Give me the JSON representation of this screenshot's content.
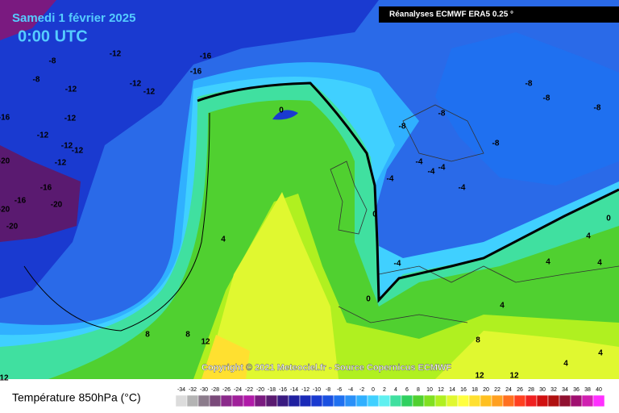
{
  "header": {
    "title": "Samedi 1 février 2025",
    "time": "0:00 UTC",
    "source_box": "Réanalyses ECMWF ERA5 0.25 °"
  },
  "map": {
    "copyright": "Copyright © 2021 Meteociel.fr - Source Copernicus ECMWF",
    "contour_labels": [
      -8,
      -12,
      -16,
      -16,
      -8,
      -12,
      -12,
      -12,
      -16,
      -12,
      -12,
      -12,
      -12,
      -12,
      -20,
      -16,
      -20,
      -16,
      -20,
      -20,
      0,
      -8,
      -8,
      -8,
      -8,
      -8,
      -8,
      -4,
      -4,
      -4,
      -4,
      -4,
      0,
      -4,
      0,
      4,
      4,
      4,
      4,
      0,
      4,
      8,
      8,
      12,
      8,
      12,
      12,
      4,
      4,
      12
    ]
  },
  "legend": {
    "title": "Température 850hPa (°C)",
    "ticks": [
      -34,
      -32,
      -30,
      -28,
      -26,
      -24,
      -22,
      -20,
      -18,
      -16,
      -14,
      -12,
      -10,
      -8,
      -6,
      -4,
      -2,
      0,
      2,
      4,
      6,
      8,
      10,
      12,
      14,
      16,
      18,
      20,
      22,
      24,
      26,
      28,
      30,
      32,
      34,
      36,
      38,
      40
    ],
    "colors": [
      "#dcdcdc",
      "#b4b4b4",
      "#8c7c8c",
      "#7a4a7a",
      "#8b2a8b",
      "#a0209a",
      "#b01aa8",
      "#7a1a80",
      "#5a1a70",
      "#3a1a80",
      "#2020a0",
      "#1a2ab8",
      "#1a3ad0",
      "#1a50e0",
      "#1f70f0",
      "#2a90f8",
      "#30b0ff",
      "#40d0ff",
      "#60f0f0",
      "#40e0a0",
      "#30d060",
      "#50d030",
      "#80e020",
      "#b0f020",
      "#e0f830",
      "#ffff40",
      "#ffe030",
      "#ffc020",
      "#ffa020",
      "#ff7020",
      "#ff4020",
      "#f02020",
      "#d01010",
      "#b01010",
      "#901030",
      "#a01070",
      "#d020b0",
      "#ff30ff"
    ]
  }
}
